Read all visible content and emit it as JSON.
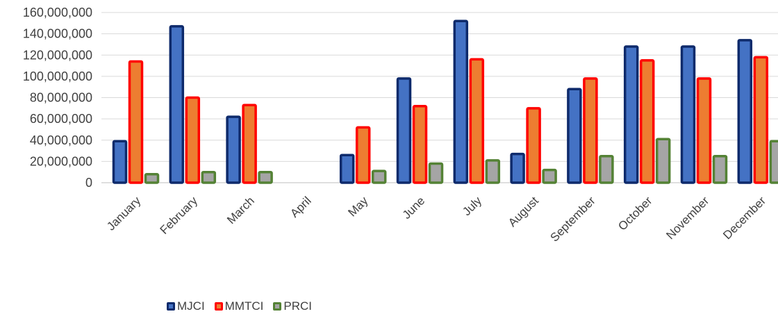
{
  "chart_data": {
    "type": "bar",
    "title": "",
    "xlabel": "",
    "ylabel": "",
    "ylim": [
      0,
      160000000
    ],
    "yticks": [
      0,
      20000000,
      40000000,
      60000000,
      80000000,
      100000000,
      120000000,
      140000000,
      160000000
    ],
    "ytick_labels": [
      "0",
      "20,000,000",
      "40,000,000",
      "60,000,000",
      "80,000,000",
      "100,000,000",
      "120,000,000",
      "140,000,000",
      "160,000,000"
    ],
    "grid": true,
    "legend_position": "bottom",
    "categories": [
      "January",
      "February",
      "March",
      "April",
      "May",
      "June",
      "July",
      "August",
      "September",
      "October",
      "November",
      "December"
    ],
    "series": [
      {
        "name": "MJCI",
        "fill": "#4472C4",
        "stroke": "#0E2A6B",
        "values": [
          39000000,
          147000000,
          62000000,
          0,
          26000000,
          98000000,
          152000000,
          27000000,
          88000000,
          128000000,
          128000000,
          134000000
        ]
      },
      {
        "name": "MMTCI",
        "fill": "#ED7D31",
        "stroke": "#FF0000",
        "values": [
          114000000,
          80000000,
          73000000,
          0,
          52000000,
          72000000,
          116000000,
          70000000,
          98000000,
          115000000,
          98000000,
          118000000
        ]
      },
      {
        "name": "PRCI",
        "fill": "#A5A5A5",
        "stroke": "#548235",
        "values": [
          8000000,
          10000000,
          10000000,
          0,
          11000000,
          18000000,
          21000000,
          12000000,
          25000000,
          41000000,
          25000000,
          39000000
        ]
      }
    ]
  }
}
